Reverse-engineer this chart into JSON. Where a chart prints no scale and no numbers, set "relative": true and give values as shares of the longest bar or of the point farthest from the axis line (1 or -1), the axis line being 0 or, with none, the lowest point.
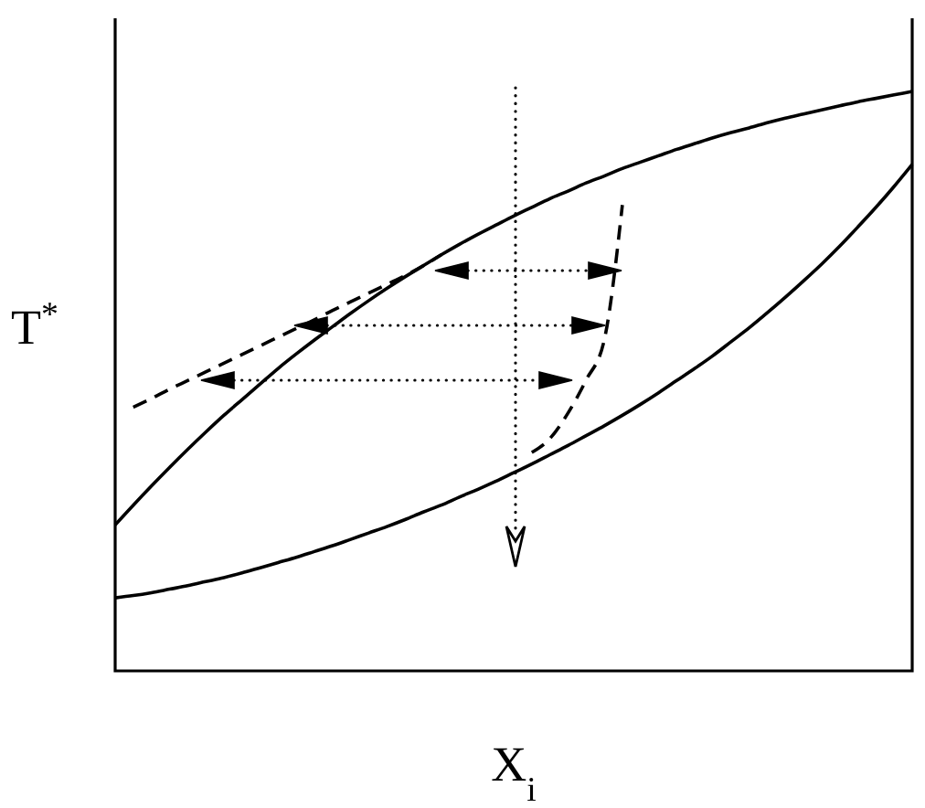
{
  "chart_data": {
    "type": "line",
    "xlabel": "X$_{i}$",
    "ylabel": "T$^{*}$",
    "relative": true,
    "categories": [
      null,
      null,
      null,
      null,
      null,
      null,
      null,
      null,
      null,
      null,
      null,
      null,
      null,
      null,
      null,
      null,
      null,
      null,
      null,
      null,
      null,
      null,
      null,
      null,
      null,
      null,
      null,
      null,
      null,
      null,
      null,
      null,
      null,
      null,
      null,
      null,
      null,
      null,
      null,
      null,
      null,
      null,
      null,
      null,
      null
    ],
    "series": [
      {
        "color": "#000000",
        "line_style": "solid",
        "values": [
          0.252,
          0.286,
          0.319,
          0.351,
          0.382,
          0.412,
          0.441,
          0.468,
          0.495,
          0.522,
          0.547,
          0.571,
          0.594,
          0.617,
          0.639,
          0.66,
          0.68,
          0.699,
          0.718,
          0.736,
          0.753,
          0.769,
          0.785,
          0.8,
          0.815,
          0.828,
          0.842,
          0.854,
          0.867,
          0.878,
          0.889,
          0.9,
          0.91,
          0.92,
          0.929,
          0.937,
          0.946,
          0.954,
          0.961,
          0.968,
          0.975,
          0.982,
          0.988,
          0.994,
          1
        ]
      },
      {
        "color": "#000000",
        "line_style": "solid",
        "values": [
          0.126,
          0.13,
          0.135,
          0.141,
          0.147,
          0.154,
          0.161,
          0.169,
          0.178,
          0.187,
          0.196,
          0.206,
          0.216,
          0.227,
          0.238,
          0.249,
          0.261,
          0.274,
          0.286,
          0.3,
          0.313,
          0.327,
          0.342,
          0.357,
          0.373,
          0.389,
          0.406,
          0.423,
          0.441,
          0.46,
          0.48,
          0.501,
          0.522,
          0.544,
          0.568,
          0.592,
          0.618,
          0.645,
          0.673,
          0.702,
          0.733,
          0.766,
          0.8,
          0.836,
          0.874
        ]
      },
      {
        "color": "#000000",
        "line_style": "dashed",
        "values": [
          null,
          0.455,
          0.47,
          0.486,
          0.501,
          0.516,
          0.531,
          0.546,
          0.561,
          0.576,
          0.591,
          0.606,
          0.622,
          0.637,
          0.652,
          0.667,
          0.682,
          0.699,
          0.718,
          null,
          null,
          null,
          null,
          null,
          null,
          null,
          null,
          null,
          null,
          null,
          null,
          null,
          null,
          null,
          null,
          null,
          null,
          null,
          null,
          null,
          null,
          null,
          null,
          null,
          null
        ]
      },
      {
        "color": "#000000",
        "line_style": "dashed",
        "values": [
          null,
          null,
          null,
          null,
          null,
          null,
          null,
          null,
          null,
          null,
          null,
          null,
          null,
          null,
          null,
          null,
          null,
          null,
          null,
          null,
          null,
          null,
          null,
          0.377,
          0.401,
          0.445,
          0.502,
          0.571,
          0.804,
          null,
          null,
          null,
          null,
          null,
          null,
          null,
          null,
          null,
          null,
          null,
          null,
          null,
          null,
          null,
          null
        ]
      }
    ]
  }
}
